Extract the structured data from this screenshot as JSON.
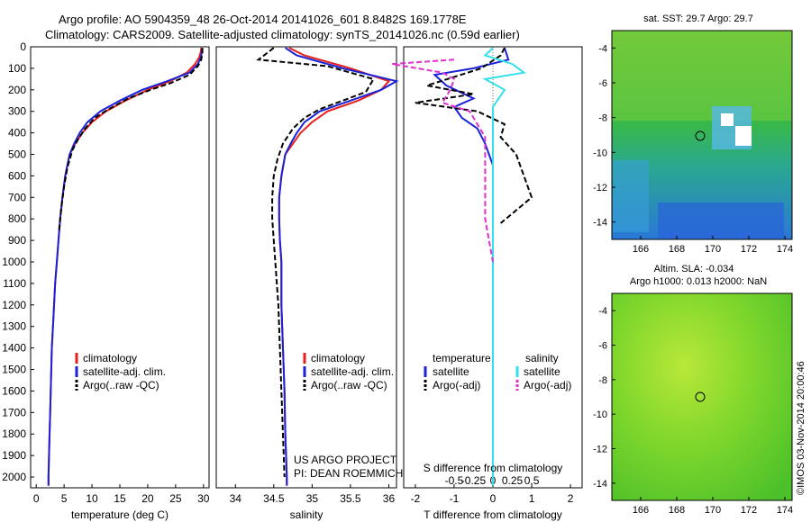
{
  "header": {
    "line1": "Argo profile: AO 5904359_48 26-Oct-2014 20141026_601 8.8482S 169.1778E",
    "line2": "Climatology: CARS2009. Satellite-adjusted climatology: synTS_20141026.nc (0.59d earlier)"
  },
  "colors": {
    "climatology": "#e8201c",
    "satellite": "#1a22d8",
    "argo": "#000000",
    "sat_salinity": "#33e0ee",
    "argo_salinity": "#e030d0"
  },
  "depth_axis": {
    "range": [
      0,
      2050
    ],
    "ticks": [
      "0",
      "100",
      "200",
      "300",
      "400",
      "500",
      "600",
      "700",
      "800",
      "900",
      "1000",
      "1100",
      "1200",
      "1300",
      "1400",
      "1500",
      "1600",
      "1700",
      "1800",
      "1900",
      "2000"
    ]
  },
  "chart_data": [
    {
      "type": "line",
      "panel": "temperature",
      "xlabel": "temperature (deg C)",
      "xlim": [
        -1,
        31
      ],
      "xticks": [
        "0",
        "5",
        "10",
        "15",
        "20",
        "25",
        "30"
      ],
      "legend": [
        "climatology",
        "satellite-adj. clim.",
        "Argo(..raw -QC)"
      ],
      "series": [
        {
          "name": "climatology",
          "color": "#e8201c",
          "points": [
            [
              29.6,
              5
            ],
            [
              29.5,
              25
            ],
            [
              29.2,
              50
            ],
            [
              28.5,
              80
            ],
            [
              27,
              120
            ],
            [
              24,
              160
            ],
            [
              20,
              200
            ],
            [
              16,
              250
            ],
            [
              12.5,
              300
            ],
            [
              10,
              350
            ],
            [
              8.3,
              400
            ],
            [
              7,
              450
            ],
            [
              6,
              500
            ],
            [
              5.2,
              600
            ],
            [
              4.7,
              700
            ],
            [
              4.3,
              800
            ],
            [
              4,
              900
            ],
            [
              3.7,
              1000
            ],
            [
              3.4,
              1100
            ],
            [
              3.2,
              1200
            ],
            [
              3,
              1300
            ],
            [
              2.8,
              1400
            ],
            [
              2.7,
              1500
            ],
            [
              2.6,
              1600
            ],
            [
              2.5,
              1700
            ],
            [
              2.4,
              1800
            ],
            [
              2.3,
              1900
            ],
            [
              2.2,
              2000
            ],
            [
              2.2,
              2040
            ]
          ]
        },
        {
          "name": "satellite-adj. clim.",
          "color": "#1a22d8",
          "points": [
            [
              29.8,
              5
            ],
            [
              29.7,
              25
            ],
            [
              29.5,
              50
            ],
            [
              29,
              80
            ],
            [
              27.5,
              120
            ],
            [
              23.5,
              160
            ],
            [
              19,
              200
            ],
            [
              15,
              250
            ],
            [
              11.5,
              300
            ],
            [
              9.2,
              350
            ],
            [
              7.8,
              400
            ],
            [
              6.8,
              450
            ],
            [
              6,
              500
            ],
            [
              5.2,
              600
            ],
            [
              4.7,
              700
            ],
            [
              4.3,
              800
            ],
            [
              4,
              900
            ],
            [
              3.7,
              1000
            ],
            [
              3.4,
              1100
            ],
            [
              3.2,
              1200
            ],
            [
              3,
              1300
            ],
            [
              2.8,
              1400
            ],
            [
              2.7,
              1500
            ],
            [
              2.6,
              1600
            ],
            [
              2.5,
              1700
            ],
            [
              2.4,
              1800
            ],
            [
              2.3,
              1900
            ],
            [
              2.2,
              2000
            ],
            [
              2.2,
              2040
            ]
          ]
        },
        {
          "name": "Argo(..raw -QC)",
          "color": "#000000",
          "points": [
            [
              29.8,
              5
            ],
            [
              29.8,
              30
            ],
            [
              29.6,
              60
            ],
            [
              29,
              90
            ],
            [
              27.5,
              130
            ],
            [
              24,
              170
            ],
            [
              20.5,
              200
            ],
            [
              16.5,
              240
            ],
            [
              13,
              290
            ],
            [
              10.5,
              330
            ],
            [
              8.8,
              380
            ],
            [
              7.5,
              430
            ],
            [
              6.5,
              480
            ],
            [
              5.6,
              560
            ],
            [
              5,
              650
            ],
            [
              4.5,
              750
            ],
            [
              4.1,
              850
            ]
          ]
        }
      ]
    },
    {
      "type": "line",
      "panel": "salinity",
      "xlabel": "salinity",
      "xlim": [
        33.75,
        36.1
      ],
      "xticks": [
        "34",
        "34.5",
        "35",
        "35.5",
        "36"
      ],
      "legend": [
        "climatology",
        "satellite-adj. clim.",
        "Argo(..raw -QC)"
      ],
      "annotation": [
        "US ARGO PROJECT",
        "PI: DEAN ROEMMICH"
      ],
      "series": [
        {
          "name": "climatology",
          "color": "#e8201c",
          "points": [
            [
              34.7,
              5
            ],
            [
              34.9,
              40
            ],
            [
              35.5,
              100
            ],
            [
              36,
              160
            ],
            [
              35.9,
              200
            ],
            [
              35.6,
              250
            ],
            [
              35.2,
              300
            ],
            [
              35,
              350
            ],
            [
              34.85,
              400
            ],
            [
              34.75,
              450
            ],
            [
              34.65,
              500
            ],
            [
              34.6,
              600
            ],
            [
              34.57,
              700
            ],
            [
              34.57,
              800
            ],
            [
              34.58,
              900
            ],
            [
              34.6,
              1000
            ],
            [
              34.6,
              1200
            ],
            [
              34.62,
              1400
            ],
            [
              34.64,
              1600
            ],
            [
              34.65,
              1800
            ],
            [
              34.67,
              2000
            ],
            [
              34.67,
              2040
            ]
          ]
        },
        {
          "name": "satellite-adj. clim.",
          "color": "#1a22d8",
          "points": [
            [
              34.65,
              5
            ],
            [
              34.8,
              40
            ],
            [
              35.4,
              100
            ],
            [
              36.1,
              160
            ],
            [
              35.9,
              200
            ],
            [
              35.5,
              250
            ],
            [
              35.1,
              300
            ],
            [
              34.9,
              350
            ],
            [
              34.8,
              400
            ],
            [
              34.72,
              450
            ],
            [
              34.65,
              500
            ],
            [
              34.6,
              600
            ],
            [
              34.57,
              700
            ],
            [
              34.57,
              800
            ],
            [
              34.58,
              900
            ],
            [
              34.6,
              1000
            ],
            [
              34.6,
              1200
            ],
            [
              34.62,
              1400
            ],
            [
              34.64,
              1600
            ],
            [
              34.65,
              1800
            ],
            [
              34.67,
              2000
            ],
            [
              34.67,
              2040
            ]
          ]
        },
        {
          "name": "Argo(..raw -QC)",
          "color": "#000000",
          "points": [
            [
              34.5,
              5
            ],
            [
              34.3,
              60
            ],
            [
              35.2,
              90
            ],
            [
              35.8,
              150
            ],
            [
              35.7,
              210
            ],
            [
              35.4,
              250
            ],
            [
              35.1,
              290
            ],
            [
              34.9,
              330
            ],
            [
              34.75,
              380
            ],
            [
              34.62,
              450
            ],
            [
              34.55,
              520
            ],
            [
              34.5,
              600
            ],
            [
              34.48,
              700
            ],
            [
              34.48,
              800
            ],
            [
              34.5,
              900
            ],
            [
              34.52,
              1000
            ],
            [
              34.54,
              1100
            ],
            [
              34.56,
              1200
            ],
            [
              34.58,
              1400
            ],
            [
              34.6,
              1600
            ],
            [
              34.62,
              1800
            ],
            [
              34.64,
              2000
            ]
          ]
        }
      ]
    },
    {
      "type": "line",
      "panel": "differences",
      "xlabel": "T difference from climatology",
      "xlabel2": "S difference from climatology",
      "xlim": [
        -2.3,
        2.3
      ],
      "xticks": [
        "-2",
        "-1",
        "0",
        "1",
        "2"
      ],
      "xticks_s": [
        "-0.5",
        "-0.25",
        "0",
        "0.25",
        "0.5"
      ],
      "legend": {
        "temperature": "temperature",
        "salinity": "salinity",
        "satellite": "satellite",
        "argo": "Argo(-adj)"
      },
      "series": [
        {
          "name": "temperature satellite",
          "color": "#1a22d8",
          "points": [
            [
              0.3,
              5
            ],
            [
              0.4,
              60
            ],
            [
              -0.5,
              100
            ],
            [
              -1.5,
              130
            ],
            [
              -1.2,
              180
            ],
            [
              -0.5,
              240
            ],
            [
              -1,
              280
            ],
            [
              -0.8,
              330
            ],
            [
              -0.4,
              380
            ],
            [
              -0.2,
              450
            ],
            [
              0,
              550
            ],
            [
              0,
              700
            ],
            [
              0,
              2040
            ]
          ]
        },
        {
          "name": "temperature Argo(-adj)",
          "color": "#000000",
          "points": [
            [
              0.3,
              5
            ],
            [
              0.2,
              40
            ],
            [
              -0.3,
              100
            ],
            [
              -1,
              140
            ],
            [
              -1.7,
              180
            ],
            [
              -0.5,
              220
            ],
            [
              -2,
              260
            ],
            [
              -0.4,
              300
            ],
            [
              0.3,
              360
            ],
            [
              0.2,
              420
            ],
            [
              0.6,
              500
            ],
            [
              0.8,
              600
            ],
            [
              1,
              700
            ],
            [
              0.6,
              760
            ],
            [
              0.2,
              820
            ]
          ]
        },
        {
          "name": "salinity satellite",
          "color": "#33e0ee",
          "points": [
            [
              0,
              5
            ],
            [
              -0.2,
              40
            ],
            [
              0.5,
              80
            ],
            [
              0.8,
              120
            ],
            [
              -0.2,
              150
            ],
            [
              0.3,
              200
            ],
            [
              0,
              280
            ],
            [
              0,
              2040
            ]
          ]
        },
        {
          "name": "salinity Argo(-adj)",
          "color": "#e030d0",
          "points": [
            [
              -1,
              60
            ],
            [
              -2.6,
              80
            ],
            [
              -1.3,
              120
            ],
            [
              -1,
              150
            ],
            [
              -1.1,
              200
            ],
            [
              -1.3,
              260
            ],
            [
              -0.6,
              300
            ],
            [
              -0.2,
              420
            ],
            [
              -0.2,
              800
            ],
            [
              -0.1,
              900
            ],
            [
              0,
              1000
            ]
          ]
        }
      ]
    }
  ],
  "maps": {
    "sst": {
      "title": "sat. SST: 29.7 Argo: 29.7",
      "yticks": [
        "-4",
        "-6",
        "-8",
        "-10",
        "-12",
        "-14"
      ],
      "xticks": [
        "166",
        "168",
        "170",
        "172",
        "174"
      ]
    },
    "sla": {
      "title1": "Altim. SLA: -0.034",
      "title2": "Argo h1000: 0.013 h2000: NaN",
      "yticks": [
        "-4",
        "-6",
        "-8",
        "-10",
        "-12",
        "-14"
      ],
      "xticks": [
        "166",
        "168",
        "170",
        "172",
        "174"
      ]
    }
  },
  "footer": {
    "stamp": "©IMOS 03-Nov-2014 20:00:46"
  }
}
